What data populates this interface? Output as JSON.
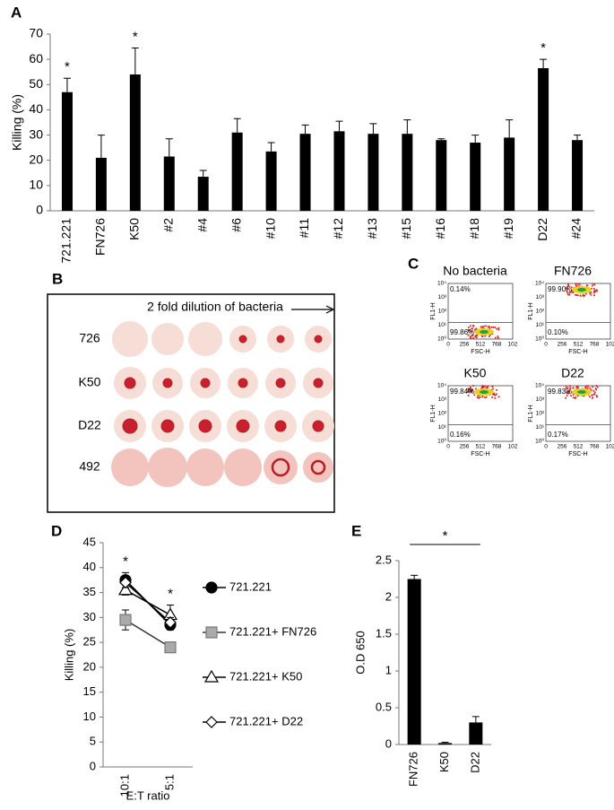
{
  "chart_data": [
    {
      "type": "bar",
      "panel": "A",
      "y_axis_label": "Killing (%)",
      "color": "#000000",
      "categories": [
        "721.221",
        "FN726",
        "K50",
        "#2",
        "#4",
        "#6",
        "#10",
        "#11",
        "#12",
        "#13",
        "#15",
        "#16",
        "#18",
        "#19",
        "D22",
        "#24"
      ],
      "values": [
        47,
        21,
        54,
        21.5,
        13.5,
        31,
        23.5,
        30.5,
        31.5,
        30.5,
        30.5,
        28,
        27,
        29,
        56.5,
        28
      ],
      "errors": [
        5.5,
        9,
        10.5,
        7,
        2.5,
        5.5,
        3.5,
        3.5,
        4,
        4,
        5.5,
        0.5,
        3,
        7,
        3.5,
        2
      ],
      "significance": [
        "*",
        null,
        "*",
        null,
        null,
        null,
        null,
        null,
        null,
        null,
        null,
        null,
        null,
        null,
        "*",
        null
      ],
      "ylim": [
        0,
        70
      ],
      "yticks": [
        0,
        10,
        20,
        30,
        40,
        50,
        60,
        70
      ]
    },
    {
      "type": "line",
      "panel": "D",
      "y_axis_label": "Killing (%)",
      "x_axis_label": "E:T ratio",
      "categories": [
        "10:1",
        "5:1"
      ],
      "significance": [
        "*",
        "*"
      ],
      "series": [
        {
          "name": "721.221",
          "color": "#000000",
          "marker": "circle",
          "marker_fill": "#000000",
          "values": [
            37.5,
            28.5
          ],
          "errors": [
            1.5,
            1
          ]
        },
        {
          "name": "721.221+ FN726",
          "color": "#333333",
          "marker": "square",
          "marker_fill": "#aaaaaa",
          "values": [
            29.5,
            24
          ],
          "errors": [
            2,
            0.5
          ]
        },
        {
          "name": "721.221+ K50",
          "color": "#000000",
          "marker": "triangle",
          "marker_fill": "#ffffff",
          "values": [
            35.5,
            30.5
          ],
          "errors": [
            1,
            2
          ]
        },
        {
          "name": "721.221+ D22",
          "color": "#000000",
          "marker": "diamond",
          "marker_fill": "#ffffff",
          "values": [
            37,
            29
          ],
          "errors": [
            1,
            1
          ]
        }
      ],
      "ylim": [
        0,
        45
      ],
      "yticks": [
        0,
        5,
        10,
        15,
        20,
        25,
        30,
        35,
        40,
        45
      ]
    },
    {
      "type": "bar",
      "panel": "E",
      "y_axis_label": "O.D 650",
      "color": "#000000",
      "annotation": "*",
      "categories": [
        "FN726",
        "K50",
        "D22"
      ],
      "values": [
        2.25,
        0.02,
        0.3
      ],
      "errors": [
        0.05,
        0.01,
        0.08
      ],
      "ylim": [
        0,
        2.5
      ],
      "yticks": [
        0,
        0.5,
        1,
        1.5,
        2,
        2.5
      ]
    }
  ],
  "panel_b": {
    "panel": "B",
    "title": "2 fold dilution of bacteria",
    "rows": [
      "726",
      "K50",
      "D22",
      "492"
    ]
  },
  "panel_c": {
    "panel": "C",
    "y_axis_label": "FL1-H",
    "x_axis_label": "FSC-H",
    "x_tick_labels": [
      "0",
      "256",
      "512",
      "768",
      "102"
    ],
    "y_tick_labels": [
      "10⁰",
      "10¹",
      "10²",
      "10³",
      "10⁴"
    ],
    "plots": [
      {
        "title": "No bacteria",
        "upper": "0.14%",
        "lower": "99.86%"
      },
      {
        "title": "FN726",
        "upper": "99.90%",
        "lower": "0.10%"
      },
      {
        "title": "K50",
        "upper": "99.84%",
        "lower": "0.16%"
      },
      {
        "title": "D22",
        "upper": "99.83%",
        "lower": "0.17%"
      }
    ]
  }
}
